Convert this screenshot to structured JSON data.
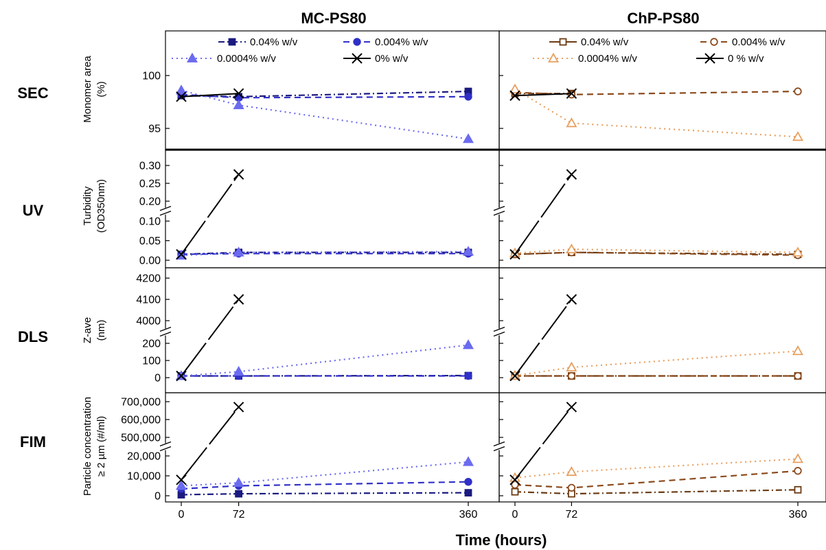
{
  "chart_data": {
    "type": "line",
    "column_titles": [
      "MC-PS80",
      "ChP-PS80"
    ],
    "row_labels": [
      "SEC",
      "UV",
      "DLS",
      "FIM"
    ],
    "xlabel": "Time (hours)",
    "x_ticks": [
      0,
      72,
      360
    ],
    "x_values": [
      0,
      72,
      360
    ],
    "legends": [
      [
        "0.04% w/v",
        "0.004% w/v",
        "0.0004% w/v",
        "0% w/v"
      ],
      [
        "0.04% w/v",
        "0.004% w/v",
        "0.0004% w/v",
        "0 % w/v"
      ]
    ],
    "series_colors": [
      [
        "#1a1a80",
        "#3030c8",
        "#6b6bf0",
        "#000000"
      ],
      [
        "#6b3a12",
        "#8b4a1c",
        "#e8a060",
        "#000000"
      ]
    ],
    "rows": [
      {
        "id": "SEC",
        "ylabel": [
          "Monomer area",
          "(%)"
        ],
        "broken_axis": false,
        "y_ticks": [
          "95",
          "100"
        ],
        "series": [
          [
            [
              98.1,
              98.0,
              98.5
            ],
            [
              98.2,
              97.9,
              98.0
            ],
            [
              98.6,
              97.2,
              94.0
            ],
            [
              98.0,
              98.3,
              null
            ]
          ],
          [
            [
              98.3,
              98.3,
              null
            ],
            [
              98.4,
              98.2,
              98.5
            ],
            [
              98.7,
              95.5,
              94.2
            ],
            [
              98.1,
              98.3,
              null
            ]
          ]
        ]
      },
      {
        "id": "UV",
        "ylabel": [
          "Turbidity",
          "(OD350nm)"
        ],
        "broken_axis": true,
        "y_ticks": [
          "0.00",
          "0.05",
          "0.10",
          "0.20",
          "0.25",
          "0.30"
        ],
        "series": [
          [
            [
              0.015,
              0.02,
              0.02
            ],
            [
              0.015,
              0.017,
              0.017
            ],
            [
              0.012,
              0.02,
              0.022
            ],
            [
              0.015,
              0.275,
              null
            ]
          ],
          [
            [
              0.015,
              0.02,
              0.015
            ],
            [
              0.015,
              0.02,
              0.013
            ],
            [
              0.018,
              0.028,
              0.02
            ],
            [
              0.015,
              0.275,
              null
            ]
          ]
        ]
      },
      {
        "id": "DLS",
        "ylabel": [
          "Z-ave",
          "(nm)"
        ],
        "broken_axis": true,
        "y_ticks": [
          "0",
          "100",
          "200",
          "4000",
          "4100",
          "4200"
        ],
        "series": [
          [
            [
              10,
              10,
              12
            ],
            [
              10,
              10,
              10
            ],
            [
              10,
              35,
              190
            ],
            [
              10,
              4100,
              null
            ]
          ],
          [
            [
              10,
              10,
              10
            ],
            [
              10,
              10,
              10
            ],
            [
              12,
              60,
              155
            ],
            [
              10,
              4100,
              null
            ]
          ]
        ]
      },
      {
        "id": "FIM",
        "ylabel": [
          "Particle concentration",
          "≥ 2 µm (#/ml)"
        ],
        "broken_axis": true,
        "y_ticks": [
          "0",
          "10,000",
          "20,000",
          "500,000",
          "600,000",
          "700,000"
        ],
        "series": [
          [
            [
              500,
              1000,
              1500
            ],
            [
              3500,
              5000,
              7000
            ],
            [
              5000,
              6500,
              17000
            ],
            [
              8000,
              670000,
              null
            ]
          ],
          [
            [
              2000,
              1000,
              3000
            ],
            [
              5500,
              4000,
              12500
            ],
            [
              9000,
              12000,
              18500
            ],
            [
              8000,
              670000,
              null
            ]
          ]
        ]
      }
    ]
  }
}
